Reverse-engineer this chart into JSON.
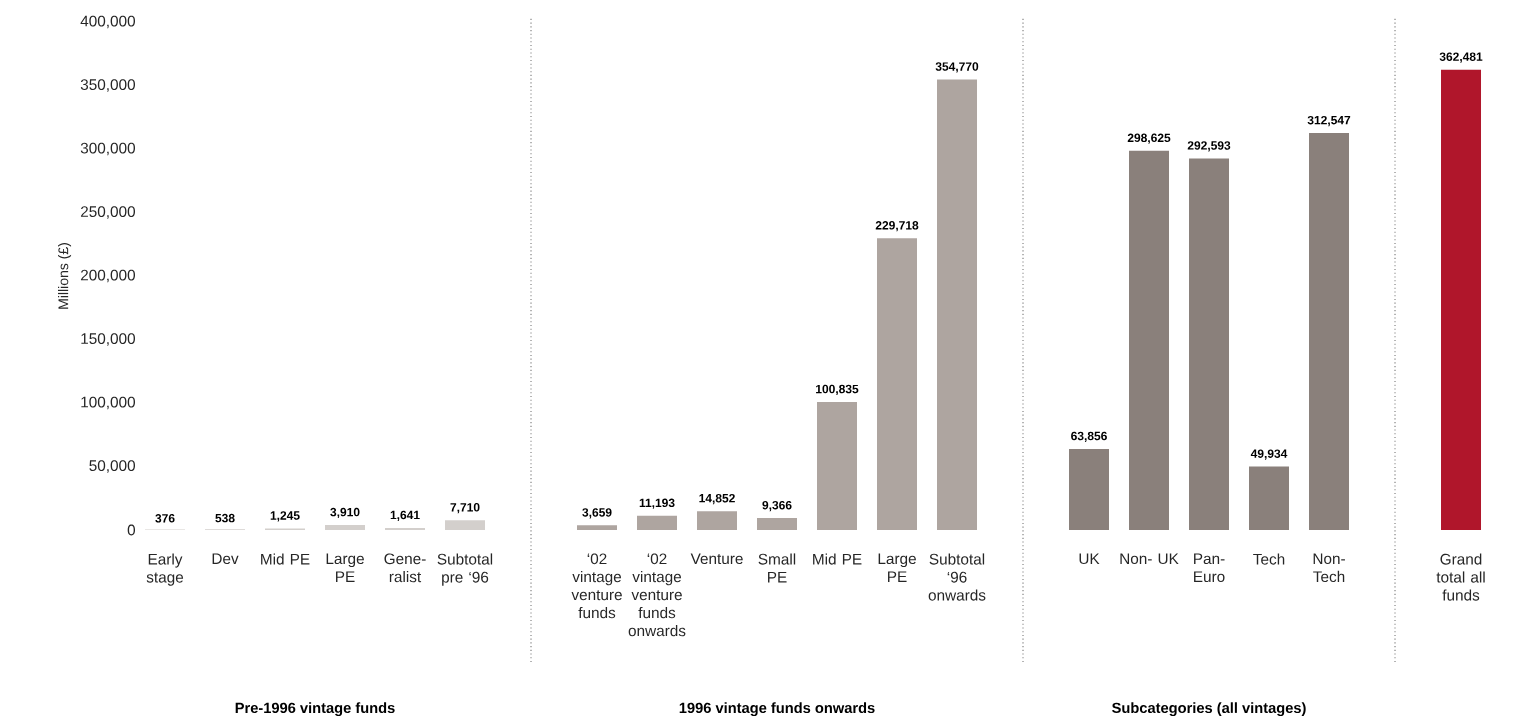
{
  "chart_data": {
    "type": "bar",
    "ylabel": "Millions (£)",
    "categories": [
      "Early stage",
      "Dev",
      "Mid PE",
      "Large PE",
      "Gene- ralist",
      "Subtotal pre ‘96",
      "‘02 vintage venture funds",
      "‘02 vintage venture funds onwards",
      "Venture",
      "Small PE",
      "Mid PE",
      "Large PE",
      "Subtotal ‘96 onwards",
      "UK",
      "Non- UK",
      "Pan- Euro",
      "Tech",
      "Non- Tech",
      "Grand total all funds"
    ],
    "values": [
      376,
      538,
      1245,
      3910,
      1641,
      7710,
      3659,
      11193,
      14852,
      9366,
      100835,
      229718,
      354770,
      63856,
      298625,
      292593,
      49934,
      312547,
      362481
    ],
    "colors": [
      "#d3cfcc",
      "#d3cfcc",
      "#d3cfcc",
      "#d3cfcc",
      "#d3cfcc",
      "#d3cfcc",
      "#aea5a0",
      "#aea5a0",
      "#aea5a0",
      "#aea5a0",
      "#aea5a0",
      "#aea5a0",
      "#aea5a0",
      "#8a807b",
      "#8a807b",
      "#8a807b",
      "#8a807b",
      "#8a807b",
      "#b0162b"
    ],
    "value_labels": [
      "376",
      "538",
      "1,245",
      "3,910",
      "1,641",
      "7,710",
      "3,659",
      "11,193",
      "14,852",
      "9,366",
      "100,835",
      "229,718",
      "354,770",
      "63,856",
      "298,625",
      "292,593",
      "49,934",
      "312,547",
      "362,481"
    ],
    "ylim": [
      0,
      400000
    ],
    "yticks": [
      {
        "value": 0,
        "label": "0"
      },
      {
        "value": 50000,
        "label": "50,000"
      },
      {
        "value": 100000,
        "label": "100,000"
      },
      {
        "value": 150000,
        "label": "150,000"
      },
      {
        "value": 200000,
        "label": "200,000"
      },
      {
        "value": 250000,
        "label": "250,000"
      },
      {
        "value": 300000,
        "label": "300,000"
      },
      {
        "value": 350000,
        "label": "350,000"
      },
      {
        "value": 400000,
        "label": "400,000"
      }
    ],
    "annotations": [
      "Pre-1996 vintage funds",
      "1996 vintage funds onwards",
      "Subcategories (all vintages)"
    ]
  }
}
